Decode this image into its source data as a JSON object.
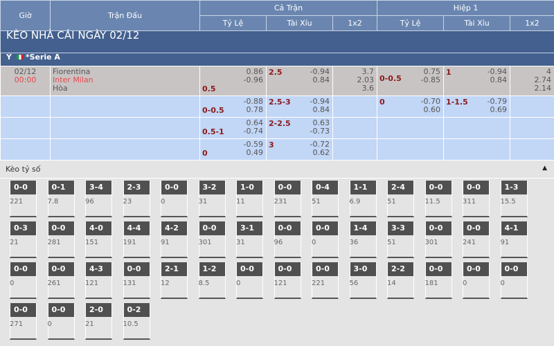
{
  "header": {
    "gio": "Giờ",
    "tran_dau": "Trận Đấu",
    "ca_tran": "Cả Trận",
    "hiep1": "Hiệp 1",
    "ty_le": "Tỷ Lệ",
    "tai_xiu": "Tài Xỉu",
    "x12": "1x2"
  },
  "title": "KÈO NHÀ CÁI NGÀY 02/12",
  "league": {
    "country": "Ý",
    "name": "*Serie A",
    "flag": "italy-flag"
  },
  "match": {
    "date": "02/12",
    "time": "00:00",
    "home": "Fiorentina",
    "away": "Inter Milan",
    "draw": "Hòa",
    "ft_hdp": {
      "line": "0.5",
      "o1": "0.86",
      "o2": "-0.96"
    },
    "ft_ou": {
      "line": "2.5",
      "o1": "-0.94",
      "o2": "0.84"
    },
    "ft_1x2": {
      "h": "3.7",
      "a": "2.03",
      "d": "3.6"
    },
    "h1_hdp": {
      "line": "0-0.5",
      "o1": "0.75",
      "o2": "-0.85"
    },
    "h1_ou": {
      "line": "1",
      "o1": "-0.94",
      "o2": "0.84"
    },
    "h1_1x2": {
      "h": "4",
      "a": "2.74",
      "d": "2.14"
    }
  },
  "sub_rows": [
    {
      "ft_hdp": {
        "line": "0-0.5",
        "o1": "-0.88",
        "o2": "0.78"
      },
      "ft_ou": {
        "line": "2.5-3",
        "o1": "-0.94",
        "o2": "0.84"
      },
      "h1_hdp": {
        "line": "0",
        "o1": "-0.70",
        "o2": "0.60"
      },
      "h1_ou": {
        "line": "1-1.5",
        "o1": "-0.79",
        "o2": "0.69"
      }
    },
    {
      "ft_hdp": {
        "line": "0.5-1",
        "o1": "0.64",
        "o2": "-0.74"
      },
      "ft_ou": {
        "line": "2-2.5",
        "o1": "0.63",
        "o2": "-0.73"
      }
    },
    {
      "ft_hdp": {
        "line": "0",
        "o1": "-0.59",
        "o2": "0.49"
      },
      "ft_ou": {
        "line": "3",
        "o1": "-0.72",
        "o2": "0.62"
      }
    }
  ],
  "keo_ty_so": {
    "title": "Kèo tỷ số",
    "collapse_icon": "caret-up-icon",
    "items": [
      [
        "0-0",
        "221"
      ],
      [
        "0-1",
        "7.8"
      ],
      [
        "3-4",
        "96"
      ],
      [
        "2-3",
        "23"
      ],
      [
        "0-0",
        "0"
      ],
      [
        "3-2",
        "31"
      ],
      [
        "1-0",
        "11"
      ],
      [
        "0-0",
        "231"
      ],
      [
        "0-4",
        "51"
      ],
      [
        "1-1",
        "6.9"
      ],
      [
        "2-4",
        "51"
      ],
      [
        "0-0",
        "11.5"
      ],
      [
        "0-0",
        "311"
      ],
      [
        "1-3",
        "15.5"
      ],
      [
        "0-3",
        "21"
      ],
      [
        "0-0",
        "281"
      ],
      [
        "4-0",
        "151"
      ],
      [
        "4-4",
        "191"
      ],
      [
        "4-2",
        "91"
      ],
      [
        "0-0",
        "301"
      ],
      [
        "3-1",
        "31"
      ],
      [
        "0-0",
        "96"
      ],
      [
        "0-0",
        "0"
      ],
      [
        "1-4",
        "36"
      ],
      [
        "3-3",
        "51"
      ],
      [
        "0-0",
        "301"
      ],
      [
        "0-0",
        "241"
      ],
      [
        "4-1",
        "91"
      ],
      [
        "0-0",
        "0"
      ],
      [
        "0-0",
        "261"
      ],
      [
        "4-3",
        "121"
      ],
      [
        "0-0",
        "131"
      ],
      [
        "2-1",
        "12"
      ],
      [
        "1-2",
        "8.5"
      ],
      [
        "0-0",
        "0"
      ],
      [
        "0-0",
        "121"
      ],
      [
        "0-0",
        "221"
      ],
      [
        "3-0",
        "56"
      ],
      [
        "2-2",
        "14"
      ],
      [
        "0-0",
        "181"
      ],
      [
        "0-0",
        "0"
      ],
      [
        "0-0",
        "0"
      ],
      [
        "0-0",
        "271"
      ],
      [
        "0-0",
        "0"
      ],
      [
        "2-0",
        "21"
      ],
      [
        "0-2",
        "10.5"
      ]
    ]
  }
}
